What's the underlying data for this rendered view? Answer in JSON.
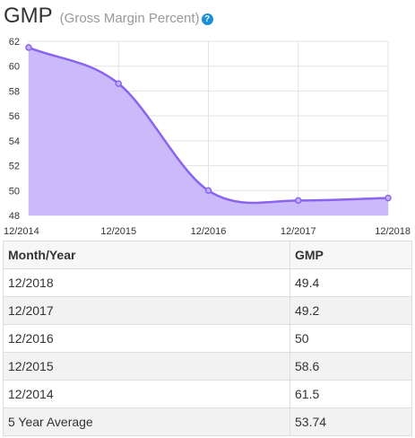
{
  "header": {
    "title": "GMP",
    "subtitle": "(Gross Margin Percent)",
    "help_icon": "question-circle-icon"
  },
  "colors": {
    "line": "#8a63ee",
    "area": "#c4b3fa",
    "grid": "#e3e3e3",
    "help": "#1a8fd8"
  },
  "chart_data": {
    "type": "area",
    "title": "GMP",
    "x": [
      "12/2014",
      "12/2015",
      "12/2016",
      "12/2017",
      "12/2018"
    ],
    "series": [
      {
        "name": "GMP",
        "values": [
          61.5,
          58.6,
          50,
          49.2,
          49.4
        ]
      }
    ],
    "ylim": [
      48,
      62
    ],
    "yticks": [
      48,
      50,
      52,
      54,
      56,
      58,
      60,
      62
    ],
    "grid": true,
    "smooth": true
  },
  "table": {
    "headers": [
      "Month/Year",
      "GMP"
    ],
    "rows": [
      [
        "12/2018",
        "49.4"
      ],
      [
        "12/2017",
        "49.2"
      ],
      [
        "12/2016",
        "50"
      ],
      [
        "12/2015",
        "58.6"
      ],
      [
        "12/2014",
        "61.5"
      ],
      [
        "5 Year Average",
        "53.74"
      ]
    ]
  }
}
